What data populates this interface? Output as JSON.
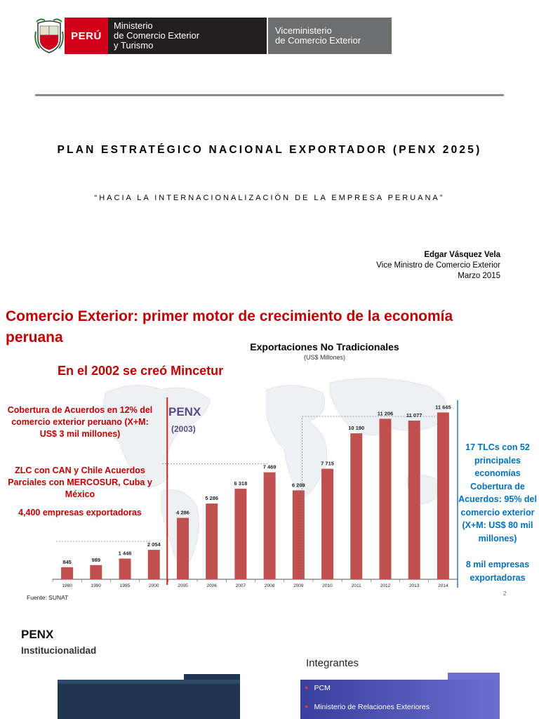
{
  "slide1": {
    "logo": {
      "peru": "PERÚ",
      "ministerio_lines": [
        "Ministerio",
        "de Comercio Exterior",
        "y Turismo"
      ],
      "viceministerio_lines": [
        "Viceministerio",
        "de Comercio Exterior"
      ]
    },
    "title": "PLAN ESTRATÉGICO NACIONAL EXPORTADOR (PENX 2025)",
    "subtitle": "“HACIA LA INTERNACIONALIZACIÓN DE LA EMPRESA PERUANA”",
    "author": {
      "name": "Edgar Vásquez Vela",
      "role": "Vice Ministro de Comercio Exterior",
      "date": "Marzo 2015"
    }
  },
  "slide2": {
    "heading": "Comercio Exterior: primer motor de crecimiento de la economía peruana",
    "mincetur_note": "En el 2002 se creó Mincetur",
    "left_notes": [
      "Cobertura de Acuerdos en 12% del comercio exterior peruano (X+M: US$ 3 mil millones)",
      "ZLC con CAN y Chile Acuerdos Parciales con MERCOSUR, Cuba y México",
      "4,400 empresas exportadoras"
    ],
    "penx_label": "PENX",
    "penx_year": "(2003)",
    "right_notes": [
      "17 TLCs con 52 principales economías Cobertura de Acuerdos: 95% del comercio exterior (X+M: US$ 80 mil millones)",
      "8 mil empresas exportadoras"
    ],
    "source": "Fuente: SUNAT",
    "page_number": "2",
    "colors": {
      "bar": "#c0504d",
      "red_text": "#c00000",
      "blue_text": "#0070c0",
      "penx": "#5b4a8a"
    }
  },
  "chart_data": {
    "type": "bar",
    "title": "Exportaciones No Tradicionales",
    "subtitle": "(US$ Millones)",
    "categories": [
      "1980",
      "1990",
      "1995",
      "2000",
      "2005",
      "2006",
      "2007",
      "2008",
      "2009",
      "2010",
      "2011",
      "2012",
      "2013",
      "2014"
    ],
    "values": [
      845,
      989,
      1446,
      2054,
      4286,
      5286,
      6318,
      7469,
      6209,
      7715,
      10190,
      11206,
      11077,
      11645
    ],
    "labels": [
      "845",
      "989",
      "1 446",
      "2 054",
      "4 286",
      "5 286",
      "6 318",
      "7 469",
      "6 209",
      "7 715",
      "10 190",
      "11 206",
      "11 077",
      "11 645"
    ],
    "ylim": [
      0,
      12500
    ],
    "xlabel": "",
    "ylabel": ""
  },
  "slide3": {
    "title": "PENX",
    "subtitle": "Institucionalidad",
    "integrantes_label": "Integrantes",
    "integrantes": [
      "PCM",
      "Ministerio de Relaciones Exteriores"
    ]
  }
}
